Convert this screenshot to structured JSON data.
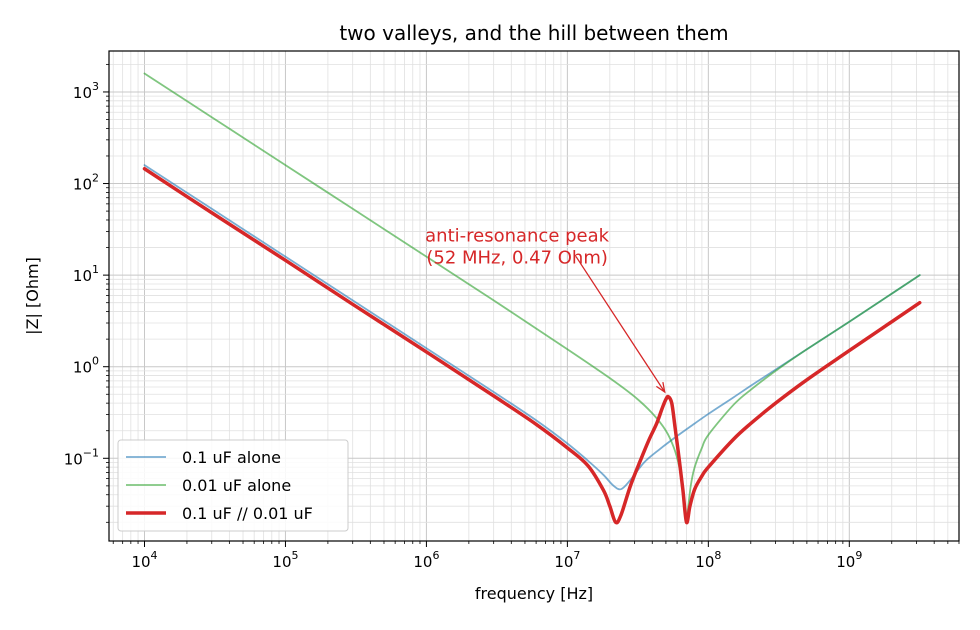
{
  "chart_data": {
    "type": "line",
    "title": "two valleys, and the hill between them",
    "xlabel": "frequency [Hz]",
    "ylabel": "|Z| [Ohm]",
    "xscale": "log",
    "yscale": "log",
    "xlim": [
      5600,
      6000000000
    ],
    "ylim": [
      0.0125,
      2800
    ],
    "grid": true,
    "legend_position": "lower-left",
    "x_ticks": [
      {
        "value": 10000,
        "base": "10",
        "exp": "4"
      },
      {
        "value": 100000,
        "base": "10",
        "exp": "5"
      },
      {
        "value": 1000000,
        "base": "10",
        "exp": "6"
      },
      {
        "value": 10000000,
        "base": "10",
        "exp": "7"
      },
      {
        "value": 100000000,
        "base": "10",
        "exp": "8"
      },
      {
        "value": 1000000000,
        "base": "10",
        "exp": "9"
      }
    ],
    "y_ticks": [
      {
        "value": 0.1,
        "base": "10",
        "exp": "−1"
      },
      {
        "value": 1,
        "base": "10",
        "exp": "0"
      },
      {
        "value": 10,
        "base": "10",
        "exp": "1"
      },
      {
        "value": 100,
        "base": "10",
        "exp": "2"
      },
      {
        "value": 1000,
        "base": "10",
        "exp": "3"
      }
    ],
    "series": [
      {
        "name": "0.1 uF alone",
        "color": "#1f77b4",
        "values": [
          [
            10000,
            159
          ],
          [
            30000,
            53
          ],
          [
            100000,
            15.9
          ],
          [
            300000,
            5.3
          ],
          [
            1000000,
            1.59
          ],
          [
            3000000,
            0.53
          ],
          [
            6000000,
            0.26
          ],
          [
            10000000,
            0.145
          ],
          [
            14000000,
            0.094
          ],
          [
            18000000,
            0.066
          ],
          [
            21000000,
            0.051
          ],
          [
            24000000,
            0.046
          ],
          [
            28000000,
            0.058
          ],
          [
            35000000,
            0.09
          ],
          [
            45000000,
            0.125
          ],
          [
            60000000,
            0.175
          ],
          [
            80000000,
            0.24
          ],
          [
            100000000,
            0.305
          ],
          [
            150000000,
            0.46
          ],
          [
            200000000,
            0.62
          ],
          [
            300000000,
            0.93
          ],
          [
            500000000,
            1.55
          ],
          [
            1000000000,
            3.1
          ],
          [
            3160000000,
            10
          ]
        ]
      },
      {
        "name": "0.01 uF alone",
        "color": "#2ca02c",
        "values": [
          [
            10000,
            1590
          ],
          [
            30000,
            530
          ],
          [
            100000,
            159
          ],
          [
            300000,
            53
          ],
          [
            1000000,
            15.9
          ],
          [
            3000000,
            5.3
          ],
          [
            10000000,
            1.55
          ],
          [
            20000000,
            0.75
          ],
          [
            30000000,
            0.47
          ],
          [
            40000000,
            0.31
          ],
          [
            50000000,
            0.2
          ],
          [
            57000000,
            0.13
          ],
          [
            62000000,
            0.082
          ],
          [
            66000000,
            0.045
          ],
          [
            69000000,
            0.024
          ],
          [
            71000000,
            0.025
          ],
          [
            75000000,
            0.05
          ],
          [
            80000000,
            0.08
          ],
          [
            90000000,
            0.13
          ],
          [
            100000000,
            0.18
          ],
          [
            150000000,
            0.38
          ],
          [
            200000000,
            0.56
          ],
          [
            300000000,
            0.9
          ],
          [
            500000000,
            1.55
          ],
          [
            1000000000,
            3.1
          ],
          [
            3160000000,
            10
          ]
        ]
      },
      {
        "name": "0.1 uF // 0.01 uF",
        "color": "#d62728",
        "values": [
          [
            10000,
            145
          ],
          [
            30000,
            48
          ],
          [
            100000,
            14.5
          ],
          [
            300000,
            4.8
          ],
          [
            1000000,
            1.45
          ],
          [
            3000000,
            0.48
          ],
          [
            6000000,
            0.235
          ],
          [
            10000000,
            0.13
          ],
          [
            14000000,
            0.083
          ],
          [
            18000000,
            0.045
          ],
          [
            20000000,
            0.03
          ],
          [
            22000000,
            0.02
          ],
          [
            24000000,
            0.024
          ],
          [
            28000000,
            0.05
          ],
          [
            33000000,
            0.095
          ],
          [
            38000000,
            0.16
          ],
          [
            43000000,
            0.24
          ],
          [
            47000000,
            0.35
          ],
          [
            50000000,
            0.44
          ],
          [
            52000000,
            0.47
          ],
          [
            55000000,
            0.4
          ],
          [
            58000000,
            0.22
          ],
          [
            62000000,
            0.1
          ],
          [
            66000000,
            0.045
          ],
          [
            70000000,
            0.02
          ],
          [
            74000000,
            0.03
          ],
          [
            80000000,
            0.046
          ],
          [
            90000000,
            0.064
          ],
          [
            100000000,
            0.08
          ],
          [
            150000000,
            0.16
          ],
          [
            200000000,
            0.24
          ],
          [
            300000000,
            0.4
          ],
          [
            500000000,
            0.72
          ],
          [
            1000000000,
            1.5
          ],
          [
            3160000000,
            5
          ]
        ]
      }
    ],
    "annotation": {
      "line1": "anti-resonance peak",
      "line2": "(52 MHz, 0.47 Ohm)",
      "text_anchor": [
        4400000,
        21
      ],
      "arrow_tail": [
        11500000,
        16
      ],
      "arrow_head": [
        49000000,
        0.53
      ],
      "color": "#d62728"
    }
  }
}
